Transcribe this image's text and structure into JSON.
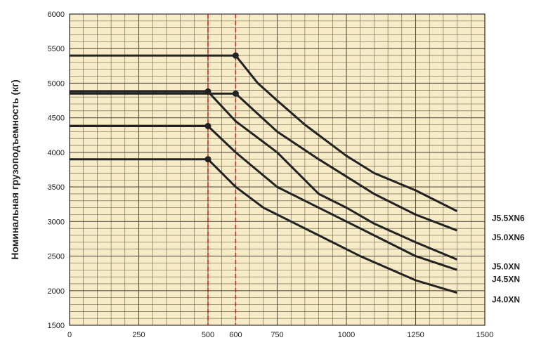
{
  "chart_data": {
    "type": "line",
    "title": "",
    "xlabel": "",
    "ylabel": "Номинальная грузоподъемность (кг)",
    "xlim": [
      0,
      1500
    ],
    "ylim": [
      1500,
      6000
    ],
    "x_ticks": [
      0,
      250,
      500,
      600,
      750,
      1000,
      1250,
      1500
    ],
    "y_ticks": [
      1500,
      2000,
      2500,
      3000,
      3500,
      4000,
      4500,
      5000,
      5500,
      6000
    ],
    "grid": true,
    "reference_lines_x": [
      500,
      600
    ],
    "colors": {
      "background": "#f7ecc7",
      "grid": "#5a5040",
      "series": "#222222",
      "reference": "#dd2222"
    },
    "series": [
      {
        "name": "J5.5XN6",
        "marker_x": 600,
        "x": [
          0,
          600,
          680,
          750,
          850,
          1000,
          1100,
          1250,
          1400
        ],
        "y": [
          5400,
          5400,
          5000,
          4750,
          4400,
          3950,
          3700,
          3450,
          3150
        ]
      },
      {
        "name": "J5.0XN6",
        "marker_x": 600,
        "x": [
          0,
          600,
          750,
          900,
          1000,
          1100,
          1250,
          1400
        ],
        "y": [
          4850,
          4850,
          4300,
          3900,
          3650,
          3400,
          3100,
          2870
        ]
      },
      {
        "name": "J5.0XN",
        "marker_x": 500,
        "x": [
          0,
          500,
          600,
          750,
          900,
          1000,
          1100,
          1250,
          1400
        ],
        "y": [
          4880,
          4880,
          4450,
          4000,
          3400,
          3200,
          2970,
          2700,
          2450
        ]
      },
      {
        "name": "J4.5XN",
        "marker_x": 500,
        "x": [
          0,
          500,
          600,
          750,
          850,
          1000,
          1100,
          1250,
          1400
        ],
        "y": [
          4380,
          4380,
          4000,
          3500,
          3300,
          3000,
          2800,
          2500,
          2300
        ]
      },
      {
        "name": "J4.0XN",
        "marker_x": 500,
        "x": [
          0,
          500,
          600,
          700,
          800,
          900,
          1050,
          1250,
          1400
        ],
        "y": [
          3900,
          3900,
          3500,
          3200,
          3000,
          2800,
          2500,
          2150,
          1970
        ]
      }
    ]
  }
}
